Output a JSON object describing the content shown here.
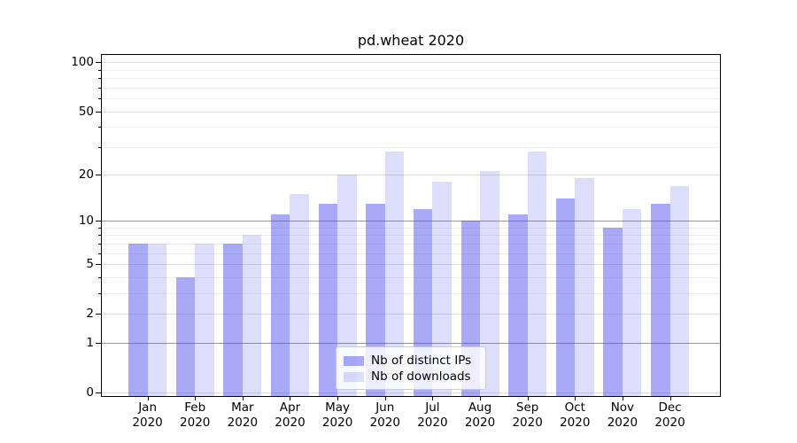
{
  "chart_data": {
    "type": "bar",
    "title": "pd.wheat 2020",
    "categories": [
      "Jan",
      "Feb",
      "Mar",
      "Apr",
      "May",
      "Jun",
      "Jul",
      "Aug",
      "Sep",
      "Oct",
      "Nov",
      "Dec"
    ],
    "x_tick_year": "2020",
    "series": [
      {
        "name": "Nb of distinct IPs",
        "color": "rgba(51,51,238,0.42)",
        "values": [
          7,
          4,
          7,
          11,
          13,
          13,
          12,
          10,
          11,
          14,
          9,
          13
        ]
      },
      {
        "name": "Nb of downloads",
        "color": "rgba(51,51,238,0.17)",
        "values": [
          7,
          7,
          8,
          15,
          20,
          28,
          18,
          21,
          28,
          19,
          12,
          17
        ]
      }
    ],
    "y_axis": {
      "scale": "log10(1+v)",
      "major_ticks": [
        0,
        1,
        2,
        5,
        10,
        20,
        50,
        100
      ],
      "minor_ticks": [
        3,
        4,
        6,
        7,
        8,
        9,
        30,
        40,
        60,
        70,
        80,
        90
      ],
      "reference_lines": [
        1,
        10
      ],
      "ylim": [
        0,
        113
      ]
    },
    "legend": {
      "position": "lower center"
    },
    "grid": true,
    "colors": {
      "major_grid": "#e0e0e0",
      "minor_grid": "#efefef",
      "reference_line": "#999999",
      "spine": "#000000",
      "background": "#ffffff"
    }
  }
}
